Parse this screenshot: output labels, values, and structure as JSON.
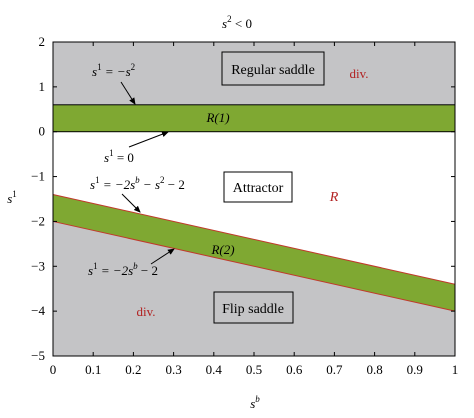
{
  "title": {
    "base": "s",
    "sup": "2",
    "rest": " < 0"
  },
  "axes": {
    "x": {
      "label_base": "s",
      "label_sup": "b",
      "range": [
        0,
        1
      ],
      "ticks": [
        "0",
        "0.1",
        "0.2",
        "0.3",
        "0.4",
        "0.5",
        "0.6",
        "0.7",
        "0.8",
        "0.9",
        "1"
      ]
    },
    "y": {
      "label_base": "s",
      "label_sup": "1",
      "range": [
        -5,
        2
      ],
      "ticks": [
        "2",
        "1",
        "0",
        "−1",
        "−2",
        "−3",
        "−4",
        "−5"
      ]
    }
  },
  "regions": {
    "regular_saddle": "Regular saddle",
    "attractor": "Attractor",
    "flip_saddle": "Flip saddle",
    "div_top": "div.",
    "div_bottom": "div.",
    "r_main": "R",
    "r1": "R(1)",
    "r2": "R(2)"
  },
  "annotations": {
    "eq_top": {
      "base": "s",
      "sup1": "1",
      "mid": " = −s",
      "sup2": "2"
    },
    "eq_zero": {
      "base": "s",
      "sup1": "1",
      "mid": " = 0"
    },
    "eq_line1": {
      "base": "s",
      "sup1": "1",
      "mid": " = −2s",
      "sup2": "b",
      "tail": " − s",
      "sup3": "2",
      "end": " − 2"
    },
    "eq_line2": {
      "base": "s",
      "sup1": "1",
      "mid": " = −2s",
      "sup2": "b",
      "end": " − 2"
    }
  },
  "colors": {
    "gray_region": "#c4c4c6",
    "green_band": "#7fa832",
    "band_border_red": "#c0392b",
    "div_text_red": "#b22222",
    "frame": "#000000"
  },
  "chart_data": {
    "type": "area",
    "xlabel": "s^b",
    "ylabel": "s^1",
    "xlim": [
      0,
      1
    ],
    "ylim": [
      -5,
      2
    ],
    "bands": [
      {
        "name": "R(1)",
        "x": [
          0,
          1
        ],
        "lower": [
          0,
          0
        ],
        "upper": [
          0.6,
          0.6
        ]
      },
      {
        "name": "R(2)",
        "x": [
          0,
          1
        ],
        "lower": [
          -2,
          -4
        ],
        "upper": [
          -1.4,
          -3.4
        ]
      }
    ],
    "lines": [
      {
        "name": "s1 = -s2",
        "x": [
          0,
          1
        ],
        "y": [
          0.6,
          0.6
        ]
      },
      {
        "name": "s1 = 0",
        "x": [
          0,
          1
        ],
        "y": [
          0,
          0
        ]
      },
      {
        "name": "s1 = -2sb - s2 - 2",
        "x": [
          0,
          1
        ],
        "y": [
          -1.4,
          -3.4
        ]
      },
      {
        "name": "s1 = -2sb - 2",
        "x": [
          0,
          1
        ],
        "y": [
          -2,
          -4
        ]
      }
    ]
  }
}
